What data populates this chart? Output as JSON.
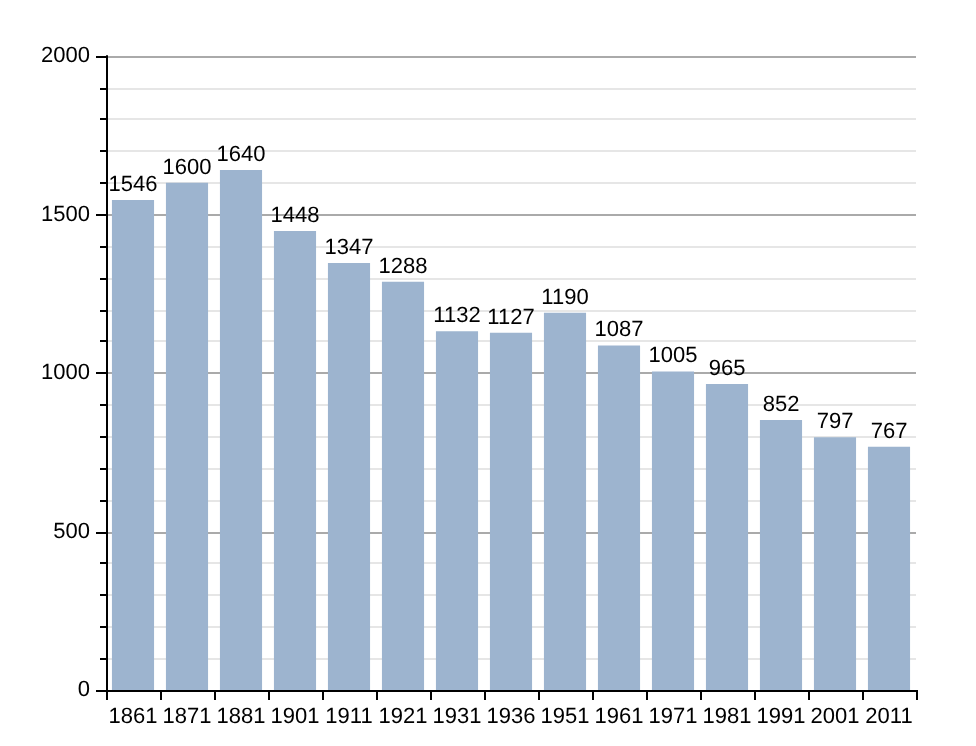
{
  "chart_data": {
    "type": "bar",
    "categories": [
      "1861",
      "1871",
      "1881",
      "1901",
      "1911",
      "1921",
      "1931",
      "1936",
      "1951",
      "1961",
      "1971",
      "1981",
      "1991",
      "2001",
      "2011"
    ],
    "values": [
      1546,
      1600,
      1640,
      1448,
      1347,
      1288,
      1132,
      1127,
      1190,
      1087,
      1005,
      965,
      852,
      797,
      767
    ],
    "color": "#9db4cf",
    "ylim": [
      0,
      2000
    ],
    "yticks": [
      0,
      500,
      1000,
      1500,
      2000
    ],
    "grid": "y",
    "data_labels": true
  }
}
